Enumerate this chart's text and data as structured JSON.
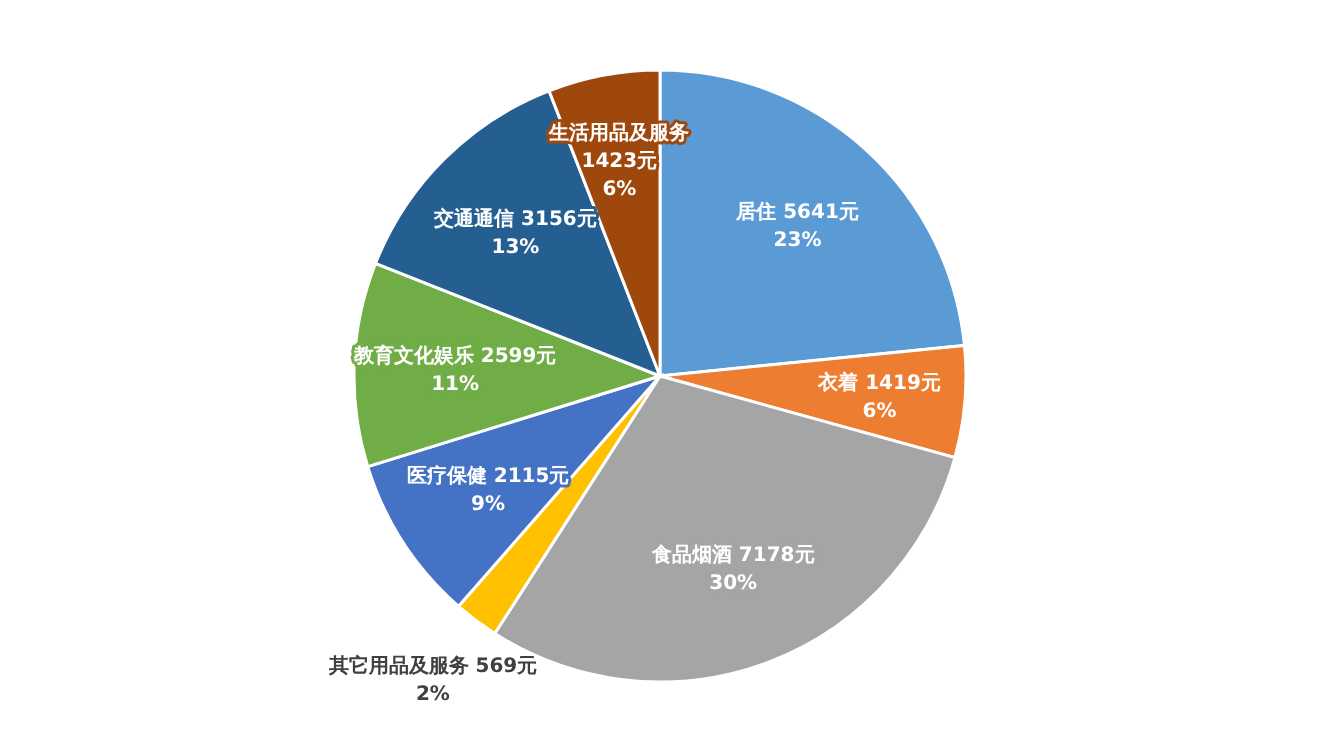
{
  "chart_data": {
    "type": "pie",
    "categories": [
      "居住",
      "衣着",
      "食品烟酒",
      "其它用品及服务",
      "医疗保健",
      "教育文化娱乐",
      "交通通信",
      "生活用品及服务"
    ],
    "values": [
      5641,
      1419,
      7178,
      569,
      2115,
      2599,
      3156,
      1423
    ],
    "value_labels": [
      "5641元\n23%",
      "1419元\n6%",
      "7178元\n30%",
      "569元\n2%",
      "2115元\n9%",
      "2599元\n11%",
      "3156元\n13%",
      "1423元\n6%"
    ],
    "colors": [
      "#5b9bd5",
      "#ed7d31",
      "#a5a5a5",
      "#ffc000",
      "#4472c4",
      "#70ad47",
      "#255e91",
      "#9e480e"
    ]
  }
}
